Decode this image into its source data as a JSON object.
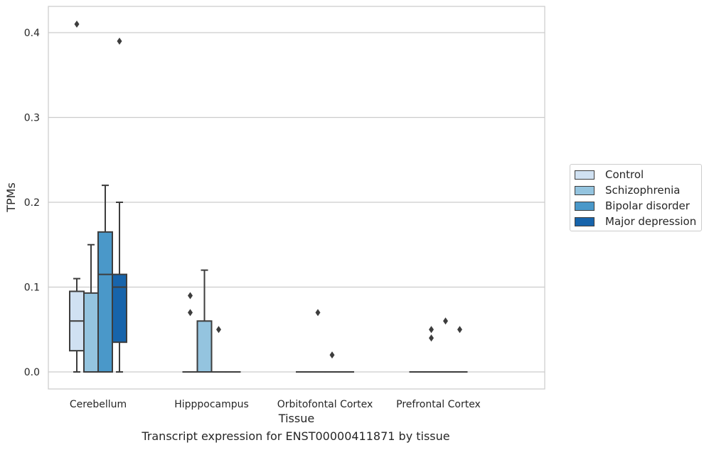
{
  "chart_data": {
    "type": "box",
    "title": "",
    "caption": "Transcript expression for ENST00000411871 by tissue",
    "xlabel": "Tissue",
    "ylabel": "TPMs",
    "ylim": [
      -0.02,
      0.431
    ],
    "yticks": [
      0.0,
      0.1,
      0.2,
      0.3,
      0.4
    ],
    "ytick_labels": [
      "0.0",
      "0.1",
      "0.2",
      "0.3",
      "0.4"
    ],
    "grid": "horizontal",
    "legend_position": "right",
    "categories": [
      "Cerebellum",
      "Hipppocampus",
      "Orbitofontal Cortex",
      "Prefrontal Cortex"
    ],
    "series": [
      {
        "name": "Control",
        "color": "#d0e1f2",
        "boxes": [
          {
            "min": 0.0,
            "q1": 0.025,
            "median": 0.06,
            "q3": 0.095,
            "max": 0.11,
            "outliers": [
              0.41
            ]
          },
          {
            "min": 0.0,
            "q1": 0.0,
            "median": 0.0,
            "q3": 0.0,
            "max": 0.0,
            "outliers": [
              0.09,
              0.07
            ]
          },
          {
            "min": 0.0,
            "q1": 0.0,
            "median": 0.0,
            "q3": 0.0,
            "max": 0.0,
            "outliers": []
          },
          {
            "min": 0.0,
            "q1": 0.0,
            "median": 0.0,
            "q3": 0.0,
            "max": 0.0,
            "outliers": []
          }
        ]
      },
      {
        "name": "Schizophrenia",
        "color": "#94c4df",
        "boxes": [
          {
            "min": 0.0,
            "q1": 0.0,
            "median": 0.0,
            "q3": 0.093,
            "max": 0.15,
            "outliers": []
          },
          {
            "min": 0.0,
            "q1": 0.0,
            "median": 0.0,
            "q3": 0.06,
            "max": 0.12,
            "outliers": []
          },
          {
            "min": 0.0,
            "q1": 0.0,
            "median": 0.0,
            "q3": 0.0,
            "max": 0.0,
            "outliers": [
              0.07
            ]
          },
          {
            "min": 0.0,
            "q1": 0.0,
            "median": 0.0,
            "q3": 0.0,
            "max": 0.0,
            "outliers": [
              0.05,
              0.04
            ]
          }
        ]
      },
      {
        "name": "Bipolar disorder",
        "color": "#4a98c9",
        "boxes": [
          {
            "min": 0.0,
            "q1": 0.0,
            "median": 0.115,
            "q3": 0.165,
            "max": 0.22,
            "outliers": []
          },
          {
            "min": 0.0,
            "q1": 0.0,
            "median": 0.0,
            "q3": 0.0,
            "max": 0.0,
            "outliers": [
              0.05
            ]
          },
          {
            "min": 0.0,
            "q1": 0.0,
            "median": 0.0,
            "q3": 0.0,
            "max": 0.0,
            "outliers": [
              0.02
            ]
          },
          {
            "min": 0.0,
            "q1": 0.0,
            "median": 0.0,
            "q3": 0.0,
            "max": 0.0,
            "outliers": [
              0.06
            ]
          }
        ]
      },
      {
        "name": "Major depression",
        "color": "#1764ab",
        "boxes": [
          {
            "min": 0.0,
            "q1": 0.035,
            "median": 0.1,
            "q3": 0.115,
            "max": 0.2,
            "outliers": [
              0.39
            ]
          },
          {
            "min": 0.0,
            "q1": 0.0,
            "median": 0.0,
            "q3": 0.0,
            "max": 0.0,
            "outliers": []
          },
          {
            "min": 0.0,
            "q1": 0.0,
            "median": 0.0,
            "q3": 0.0,
            "max": 0.0,
            "outliers": []
          },
          {
            "min": 0.0,
            "q1": 0.0,
            "median": 0.0,
            "q3": 0.0,
            "max": 0.0,
            "outliers": [
              0.05
            ]
          }
        ]
      }
    ]
  }
}
